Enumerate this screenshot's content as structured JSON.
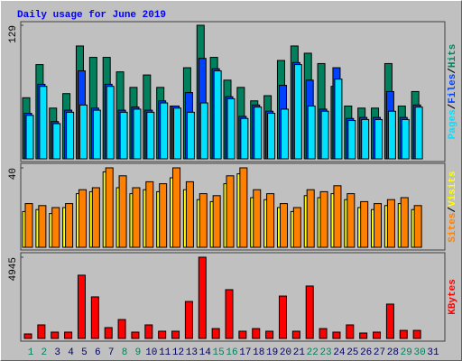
{
  "chart_data": [
    {
      "type": "bar",
      "title": "Daily usage for June 2019",
      "ylim": [
        0,
        129
      ],
      "yticks": [
        129
      ],
      "legend_separator": "/",
      "series": [
        {
          "name": "Hits",
          "color": "#00805c",
          "values": [
            59,
            91,
            49,
            63,
            109,
            98,
            98,
            84,
            69,
            81,
            69,
            51,
            88,
            129,
            98,
            76,
            69,
            56,
            61,
            95,
            109,
            102,
            92,
            70,
            51,
            49,
            49,
            92,
            51,
            65,
            null
          ]
        },
        {
          "name": "Files",
          "color": "#0040ff",
          "values": [
            44,
            72,
            36,
            47,
            85,
            49,
            72,
            47,
            50,
            47,
            56,
            51,
            64,
            97,
            87,
            60,
            41,
            52,
            46,
            71,
            93,
            76,
            48,
            88,
            39,
            40,
            40,
            65,
            40,
            52,
            null
          ]
        },
        {
          "name": "Pages",
          "color": "#00e0ff",
          "values": [
            42,
            70,
            34,
            45,
            52,
            47,
            70,
            45,
            48,
            45,
            54,
            49,
            45,
            54,
            85,
            58,
            39,
            50,
            44,
            48,
            91,
            51,
            46,
            77,
            37,
            38,
            38,
            46,
            38,
            50,
            null
          ]
        }
      ]
    },
    {
      "type": "bar",
      "ylim": [
        0,
        40
      ],
      "yticks": [
        40
      ],
      "series": [
        {
          "name": "Visits",
          "color": "#ffff00",
          "values": [
            18,
            19,
            17,
            20,
            27,
            28,
            38,
            30,
            27,
            29,
            28,
            35,
            29,
            24,
            23,
            32,
            37,
            25,
            24,
            20,
            18,
            26,
            25,
            27,
            24,
            20,
            19,
            21,
            22,
            19,
            null
          ]
        },
        {
          "name": "Sites",
          "color": "#ff8000",
          "values": [
            22,
            21,
            20,
            22,
            29,
            30,
            40,
            36,
            30,
            33,
            32,
            40,
            33,
            27,
            26,
            36,
            40,
            29,
            27,
            22,
            20,
            29,
            28,
            31,
            27,
            23,
            22,
            24,
            25,
            21,
            null
          ]
        }
      ]
    },
    {
      "type": "bar",
      "ylim": [
        0,
        4945
      ],
      "yticks": [
        4945
      ],
      "categories": [
        "1",
        "2",
        "3",
        "4",
        "5",
        "6",
        "7",
        "8",
        "9",
        "10",
        "11",
        "12",
        "13",
        "14",
        "15",
        "16",
        "17",
        "18",
        "19",
        "20",
        "21",
        "22",
        "23",
        "24",
        "25",
        "26",
        "27",
        "28",
        "29",
        "30",
        "31"
      ],
      "category_colors": [
        "#00805c",
        "#00805c",
        "#000060",
        "#000060",
        "#000060",
        "#000060",
        "#000060",
        "#00805c",
        "#00805c",
        "#000060",
        "#000060",
        "#000060",
        "#000060",
        "#000060",
        "#00805c",
        "#00805c",
        "#000060",
        "#000060",
        "#000060",
        "#000060",
        "#000060",
        "#00805c",
        "#00805c",
        "#000060",
        "#000060",
        "#000060",
        "#000060",
        "#000060",
        "#00805c",
        "#00805c",
        "#000060"
      ],
      "series": [
        {
          "name": "KBytes",
          "color": "#ff0000",
          "values": [
            275,
            825,
            385,
            385,
            3850,
            2530,
            660,
            1150,
            385,
            825,
            440,
            440,
            2250,
            4945,
            600,
            2970,
            440,
            600,
            440,
            2580,
            440,
            3190,
            600,
            385,
            825,
            330,
            385,
            2090,
            490,
            490,
            null
          ]
        }
      ]
    }
  ]
}
